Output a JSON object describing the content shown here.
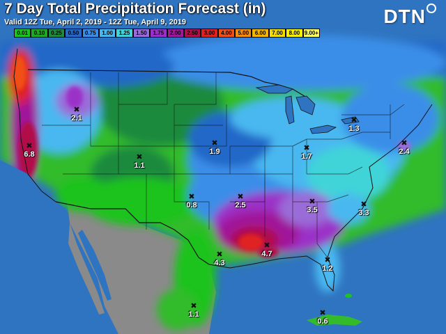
{
  "map": {
    "title": "7 Day Total Precipitation Forecast (in)",
    "valid_text": "Valid 12Z Tue, April 2, 2019 - 12Z Tue, April 9, 2019",
    "logo_text": "DTN",
    "legend": [
      {
        "label": "0.01",
        "color": "#1fc31f"
      },
      {
        "label": "0.10",
        "color": "#21a821"
      },
      {
        "label": "0.25",
        "color": "#1e8a3c"
      },
      {
        "label": "0.50",
        "color": "#2468c8"
      },
      {
        "label": "0.75",
        "color": "#3a8ee8"
      },
      {
        "label": "1.00",
        "color": "#48b8f0"
      },
      {
        "label": "1.25",
        "color": "#40d4d8"
      },
      {
        "label": "1.50",
        "color": "#9a6cd8"
      },
      {
        "label": "1.75",
        "color": "#9b30c8"
      },
      {
        "label": "2.00",
        "color": "#a0189a"
      },
      {
        "label": "2.50",
        "color": "#b0104a"
      },
      {
        "label": "3.00",
        "color": "#e02020"
      },
      {
        "label": "4.00",
        "color": "#f05018"
      },
      {
        "label": "5.00",
        "color": "#f58c10"
      },
      {
        "label": "6.00",
        "color": "#f5b400"
      },
      {
        "label": "7.00",
        "color": "#f5dc00"
      },
      {
        "label": "8.00",
        "color": "#f8f000"
      },
      {
        "label": "9.00+",
        "color": "#ffff60"
      }
    ],
    "point_forecasts": [
      {
        "location": "Northern California",
        "value": "6.8"
      },
      {
        "location": "Northern Idaho",
        "value": "2.1"
      },
      {
        "location": "Central Rockies",
        "value": "1.1"
      },
      {
        "location": "Iowa",
        "value": "1.9"
      },
      {
        "location": "Texas Panhandle",
        "value": "0.8"
      },
      {
        "location": "Arkansas",
        "value": "2.5"
      },
      {
        "location": "Ohio",
        "value": "1.7"
      },
      {
        "location": "Western New York",
        "value": "1.3"
      },
      {
        "location": "Southern New England",
        "value": "2.4"
      },
      {
        "location": "Southeast Texas",
        "value": "4.3"
      },
      {
        "location": "Southern Mississippi",
        "value": "4.7"
      },
      {
        "location": "South Carolina",
        "value": "3.5"
      },
      {
        "location": "Eastern North Carolina",
        "value": "3.3"
      },
      {
        "location": "Central Florida",
        "value": "1.2"
      },
      {
        "location": "Northern Mexico",
        "value": "1.1"
      },
      {
        "location": "Cuba",
        "value": "0.6"
      }
    ]
  }
}
